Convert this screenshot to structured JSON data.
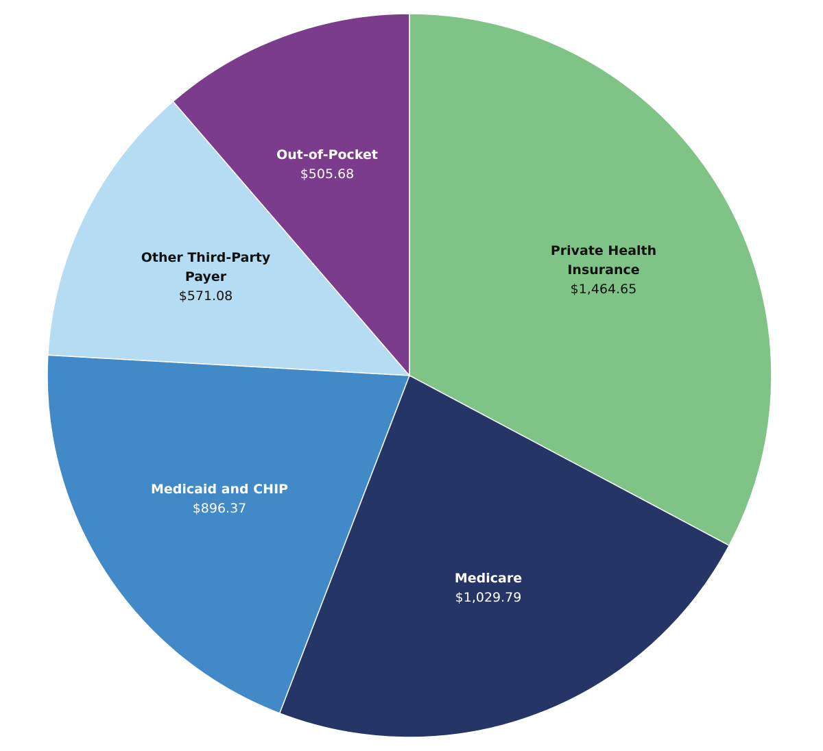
{
  "chart_data": {
    "type": "pie",
    "categories": [
      "Private Health Insurance",
      "Medicare",
      "Medicaid and CHIP",
      "Other Third-Party Payer",
      "Out-of-Pocket"
    ],
    "values": [
      1464.65,
      1029.79,
      896.37,
      571.08,
      505.68
    ],
    "value_labels": [
      "$1,464.65",
      "$1,029.79",
      "$896.37",
      "$571.08",
      "$505.68"
    ],
    "colors": [
      "#80c386",
      "#243566",
      "#4189c7",
      "#b5dcf2",
      "#7b3c8c"
    ]
  }
}
